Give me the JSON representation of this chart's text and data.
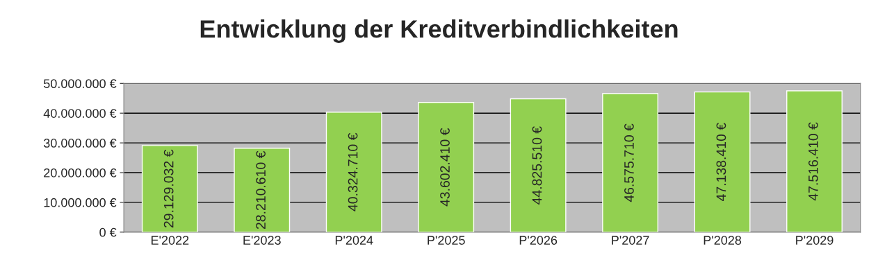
{
  "chart_data": {
    "type": "bar",
    "title": "Entwicklung der Kreditverbindlichkeiten",
    "categories": [
      "E'2022",
      "E'2023",
      "P'2024",
      "P'2025",
      "P'2026",
      "P'2027",
      "P'2028",
      "P'2029"
    ],
    "values": [
      29129032,
      28210610,
      40324710,
      43602410,
      44825510,
      46575710,
      47138410,
      47516410
    ],
    "value_labels": [
      "29.129.032 €",
      "28.210.610 €",
      "40.324.710 €",
      "43.602.410 €",
      "44.825.510 €",
      "46.575.710 €",
      "47.138.410 €",
      "47.516.410 €"
    ],
    "color": "#92d050",
    "ylim": [
      0,
      50000000
    ],
    "yticks": [
      {
        "value": 0,
        "label": "0 €"
      },
      {
        "value": 10000000,
        "label": "10.000.000 €"
      },
      {
        "value": 20000000,
        "label": "20.000.000 €"
      },
      {
        "value": 30000000,
        "label": "30.000.000 €"
      },
      {
        "value": 40000000,
        "label": "40.000.000 €"
      },
      {
        "value": 50000000,
        "label": "50.000.000 €"
      }
    ],
    "grid": "y",
    "legend": false
  }
}
